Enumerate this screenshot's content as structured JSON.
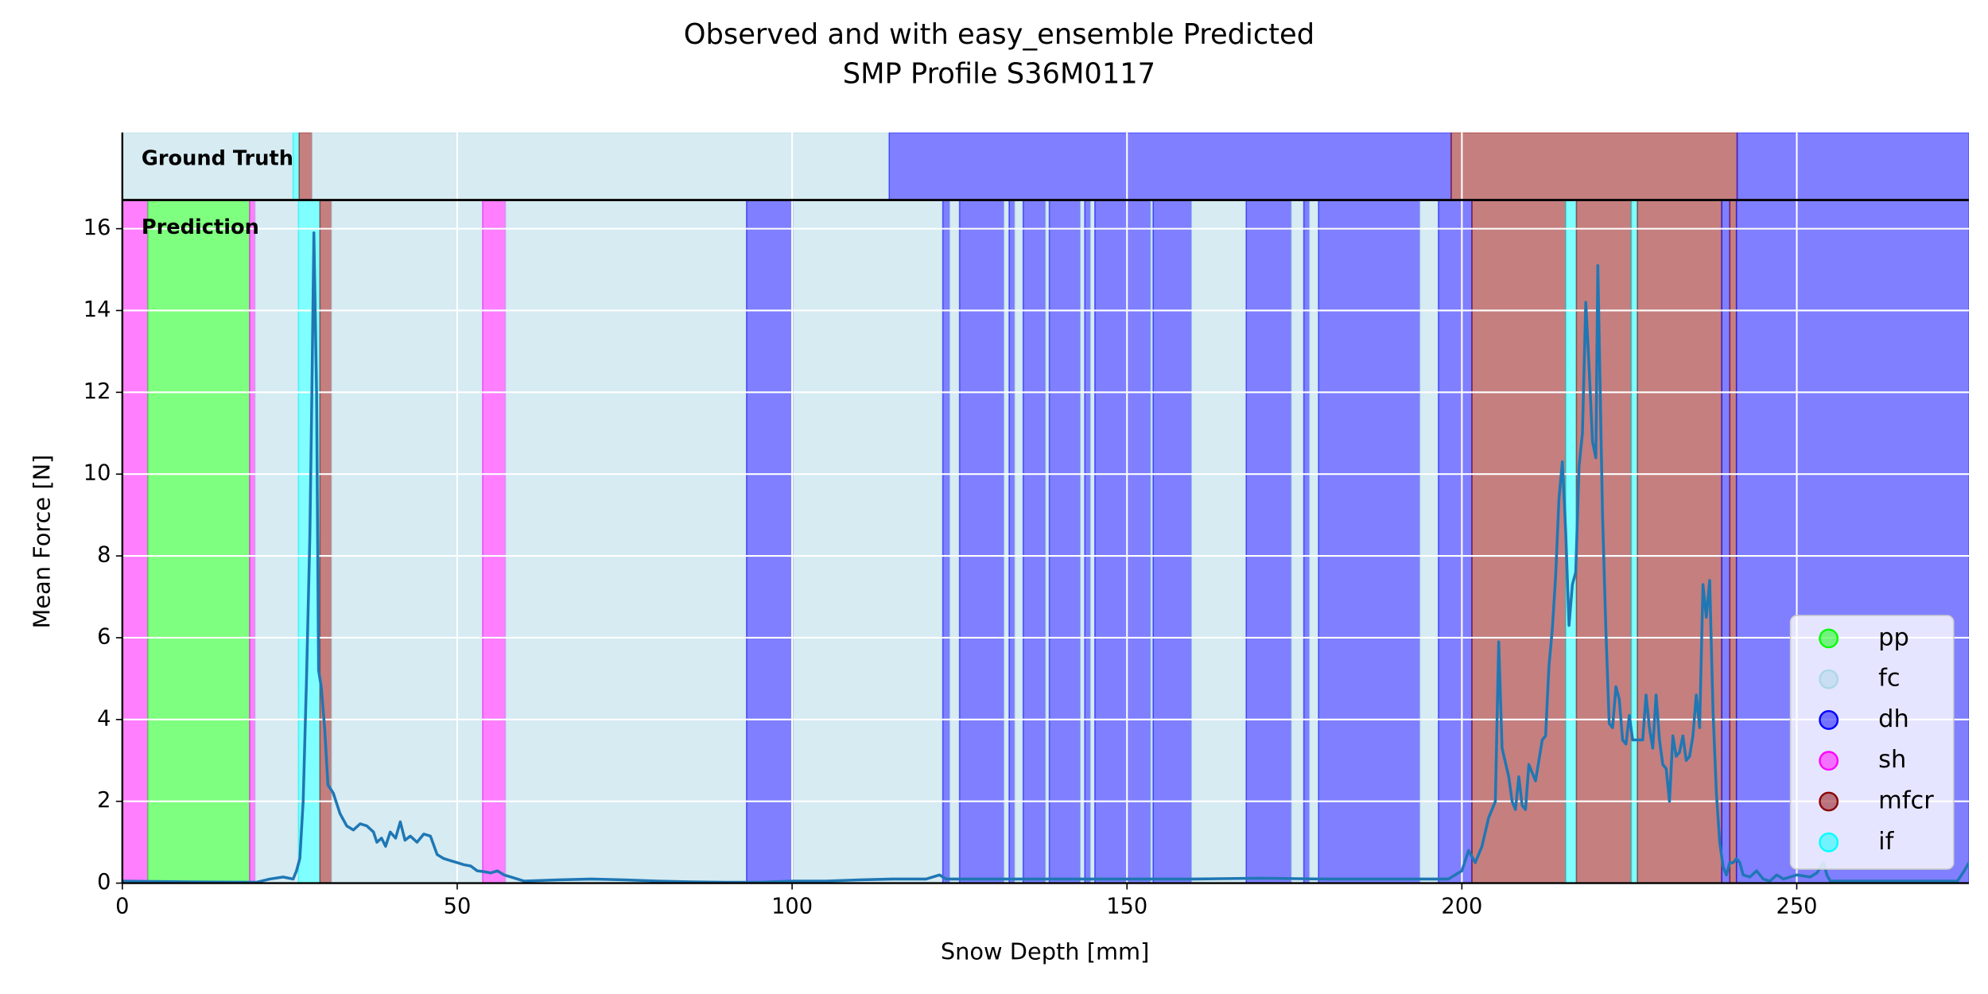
{
  "chart_data": {
    "type": "profile",
    "title": [
      "Observed and with easy_ensemble Predicted",
      "SMP Profile S36M0117"
    ],
    "xlabel": "Snow Depth [mm]",
    "ylabel": "Mean Force [N]",
    "xlim": [
      0,
      275.7
    ],
    "ylim": [
      0,
      16.7
    ],
    "xticks": [
      0,
      50,
      100,
      150,
      200,
      250
    ],
    "yticks": [
      0,
      2,
      4,
      6,
      8,
      10,
      12,
      14,
      16
    ],
    "grid": true,
    "band_alpha": 0.5,
    "legend_position": "lower right",
    "classes": [
      {
        "name": "pp",
        "color": "#00ff00"
      },
      {
        "name": "fc",
        "color": "#add8e6"
      },
      {
        "name": "dh",
        "color": "#0000ff"
      },
      {
        "name": "sh",
        "color": "#ff00ff"
      },
      {
        "name": "mfcr",
        "color": "#8b0000"
      },
      {
        "name": "if",
        "color": "#00ffff"
      }
    ],
    "ground_truth": {
      "label": "Ground Truth",
      "boundaries": [
        0,
        25.5,
        26.4,
        28.3,
        114.5,
        198.4,
        241.1,
        275.7
      ],
      "classes": [
        "fc",
        "if",
        "mfcr",
        "fc",
        "dh",
        "mfcr",
        "dh"
      ]
    },
    "prediction": {
      "label": "Prediction",
      "boundaries": [
        0,
        3.8,
        19.0,
        19.8,
        26.3,
        29.5,
        31.2,
        53.8,
        57.2,
        93.2,
        100.1,
        122.5,
        123.5,
        125.0,
        131.6,
        132.4,
        133.2,
        134.5,
        137.8,
        138.4,
        143.0,
        143.7,
        144.5,
        145.2,
        153.5,
        153.9,
        159.6,
        167.8,
        174.5,
        176.4,
        177.2,
        178.6,
        193.7,
        196.5,
        201.5,
        215.5,
        217.1,
        225.3,
        226.2,
        238.8,
        240.0,
        241.0,
        275.7
      ],
      "classes": [
        "sh",
        "pp",
        "sh",
        "fc",
        "if",
        "mfcr",
        "fc",
        "sh",
        "fc",
        "dh",
        "fc",
        "dh",
        "fc",
        "dh",
        "fc",
        "dh",
        "fc",
        "dh",
        "fc",
        "dh",
        "fc",
        "dh",
        "fc",
        "dh",
        "fc",
        "dh",
        "fc",
        "dh",
        "fc",
        "dh",
        "fc",
        "dh",
        "fc",
        "dh",
        "mfcr",
        "if",
        "mfcr",
        "if",
        "mfcr",
        "dh",
        "mfcr",
        "dh"
      ]
    },
    "line": {
      "color": "#1f77b4",
      "x": [
        0,
        10,
        20,
        22,
        24,
        25.5,
        26,
        26.5,
        27,
        27.5,
        28,
        28.3,
        28.6,
        29,
        29.3,
        29.7,
        30.2,
        30.7,
        31.5,
        32.5,
        33.5,
        34.5,
        35.5,
        36.5,
        37.5,
        38,
        38.7,
        39.3,
        40,
        40.8,
        41.5,
        42.2,
        43,
        44,
        45,
        46,
        47,
        48,
        49,
        50,
        51,
        52,
        53,
        54,
        55,
        56,
        57,
        58,
        60,
        65,
        70,
        75,
        80,
        85,
        90,
        95,
        100,
        105,
        110,
        115,
        120,
        122,
        123,
        130,
        140,
        150,
        160,
        170,
        180,
        190,
        195,
        198,
        200,
        201,
        202,
        203,
        204,
        205,
        205.5,
        206,
        207,
        207.5,
        208,
        208.5,
        209,
        209.5,
        210,
        211,
        212,
        212.5,
        213,
        213.5,
        214,
        214.5,
        215,
        215.5,
        216,
        216.5,
        217,
        217.5,
        218,
        218.5,
        219,
        219.5,
        220,
        220.3,
        221,
        221.5,
        222,
        222.5,
        223,
        223.5,
        224,
        224.5,
        225,
        225.5,
        226,
        227,
        227.5,
        228,
        228.5,
        229,
        229.5,
        230,
        230.5,
        231,
        231.5,
        232,
        232.5,
        233,
        233.5,
        234,
        234.5,
        235,
        235.5,
        236,
        236.5,
        237,
        237.5,
        238,
        238.5,
        239,
        239.5,
        240,
        240.5,
        241,
        241.5,
        242,
        243,
        244,
        245,
        246,
        247,
        248,
        250,
        252,
        253,
        254,
        254.5,
        255,
        260,
        265,
        270,
        274,
        275,
        275.7
      ],
      "values": [
        0.05,
        0.03,
        0.02,
        0.1,
        0.15,
        0.1,
        0.3,
        0.6,
        2,
        5,
        8.5,
        12,
        15.9,
        12,
        5.2,
        4.8,
        3.8,
        2.4,
        2.2,
        1.7,
        1.4,
        1.3,
        1.45,
        1.4,
        1.25,
        1.0,
        1.1,
        0.9,
        1.25,
        1.1,
        1.5,
        1.05,
        1.15,
        1.0,
        1.2,
        1.15,
        0.7,
        0.6,
        0.55,
        0.5,
        0.45,
        0.42,
        0.3,
        0.28,
        0.25,
        0.3,
        0.2,
        0.15,
        0.05,
        0.08,
        0.1,
        0.08,
        0.05,
        0.03,
        0.02,
        0.02,
        0.05,
        0.05,
        0.08,
        0.1,
        0.1,
        0.2,
        0.1,
        0.1,
        0.1,
        0.1,
        0.1,
        0.12,
        0.1,
        0.1,
        0.1,
        0.1,
        0.3,
        0.8,
        0.5,
        0.9,
        1.6,
        2.0,
        5.9,
        3.3,
        2.6,
        2.0,
        1.8,
        2.6,
        1.9,
        1.8,
        2.9,
        2.5,
        3.5,
        3.6,
        5.3,
        6.2,
        7.5,
        9.4,
        10.3,
        8.6,
        6.3,
        7.3,
        7.6,
        10.2,
        11,
        14.2,
        12.6,
        10.8,
        10.4,
        15.1,
        9,
        6.2,
        3.9,
        3.8,
        4.8,
        4.5,
        3.5,
        3.4,
        4.1,
        3.5,
        3.5,
        3.5,
        4.6,
        3.8,
        3.3,
        4.6,
        3.5,
        2.9,
        2.8,
        2.0,
        3.6,
        3.1,
        3.2,
        3.6,
        3.0,
        3.1,
        3.6,
        4.6,
        3.8,
        7.3,
        6.5,
        7.4,
        4.2,
        2.2,
        1.0,
        0.4,
        0.2,
        0.5,
        0.5,
        0.6,
        0.5,
        0.2,
        0.15,
        0.3,
        0.1,
        0.05,
        0.2,
        0.1,
        0.2,
        0.15,
        0.25,
        0.5,
        0.2,
        0.05,
        0.05,
        0.05,
        0.05,
        0.05,
        0.3,
        0.5
      ]
    }
  }
}
